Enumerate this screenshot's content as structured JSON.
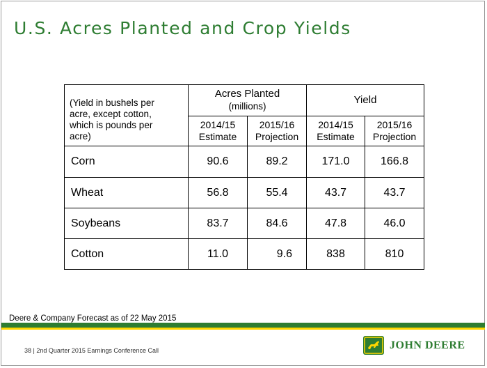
{
  "slide": {
    "title": "U.S. Acres Planted and Crop Yields",
    "forecast_note": "Deere & Company Forecast as of 22 May 2015",
    "footer": "38  |  2nd Quarter 2015 Earnings Conference Call",
    "logo_text": "JOHN DEERE",
    "colors": {
      "title": "#2e7d32",
      "green_bar": "#2e7d32",
      "yellow_bar": "#ffd700"
    }
  },
  "table": {
    "note_lines": [
      "(Yield in bushels per",
      "acre, except cotton,",
      "which is pounds per",
      "acre)"
    ],
    "acres_header": "Acres Planted",
    "acres_sub": "(millions)",
    "yield_header": "Yield",
    "cols": [
      {
        "year": "2014/15",
        "kind": "Estimate"
      },
      {
        "year": "2015/16",
        "kind": "Projection"
      },
      {
        "year": "2014/15",
        "kind": "Estimate"
      },
      {
        "year": "2015/16",
        "kind": "Projection"
      }
    ],
    "rows": [
      {
        "crop": "Corn",
        "values": [
          "90.6",
          "89.2",
          "171.0",
          "166.8"
        ]
      },
      {
        "crop": "Wheat",
        "values": [
          "56.8",
          "55.4",
          "43.7",
          "43.7"
        ]
      },
      {
        "crop": "Soybeans",
        "values": [
          "83.7",
          "84.6",
          "47.8",
          "46.0"
        ]
      },
      {
        "crop": "Cotton",
        "values": [
          "11.0",
          "9.6",
          "838",
          "810"
        ]
      }
    ]
  }
}
